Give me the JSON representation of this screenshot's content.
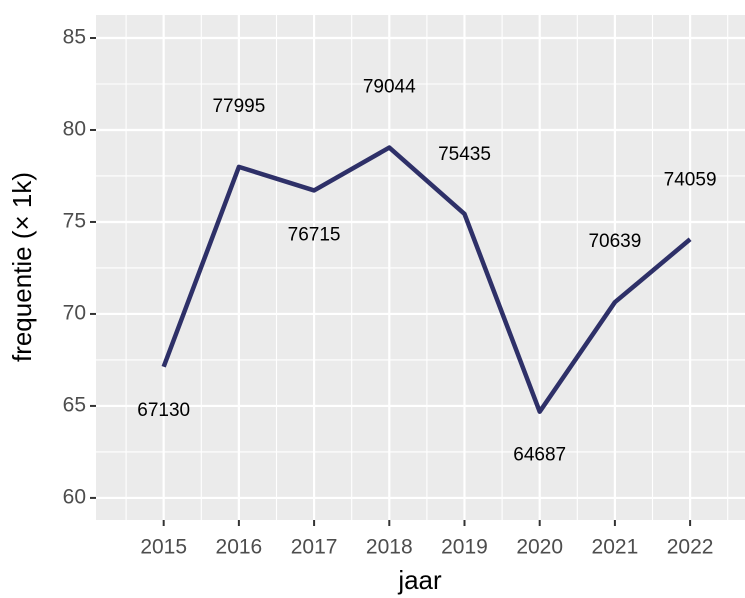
{
  "chart_data": {
    "type": "line",
    "x_label": "jaar",
    "y_label": "frequentie (× 1k)",
    "x": [
      2015,
      2016,
      2017,
      2018,
      2019,
      2020,
      2021,
      2022
    ],
    "series": [
      {
        "name": "frequentie",
        "color": "#2e3068",
        "values": [
          67.13,
          77.995,
          76.715,
          79.044,
          75.435,
          64.687,
          70.639,
          74.059
        ],
        "value_labels": [
          "67130",
          "77995",
          "76715",
          "79044",
          "75435",
          "64687",
          "70639",
          "74059"
        ]
      }
    ],
    "xlim": [
      2014.1,
      2022.73
    ],
    "xticks": [
      2015,
      2016,
      2017,
      2018,
      2019,
      2020,
      2021,
      2022
    ],
    "ylim": [
      58.8,
      86.25
    ],
    "yticks": [
      60,
      65,
      70,
      75,
      80,
      85
    ],
    "grid": true
  }
}
